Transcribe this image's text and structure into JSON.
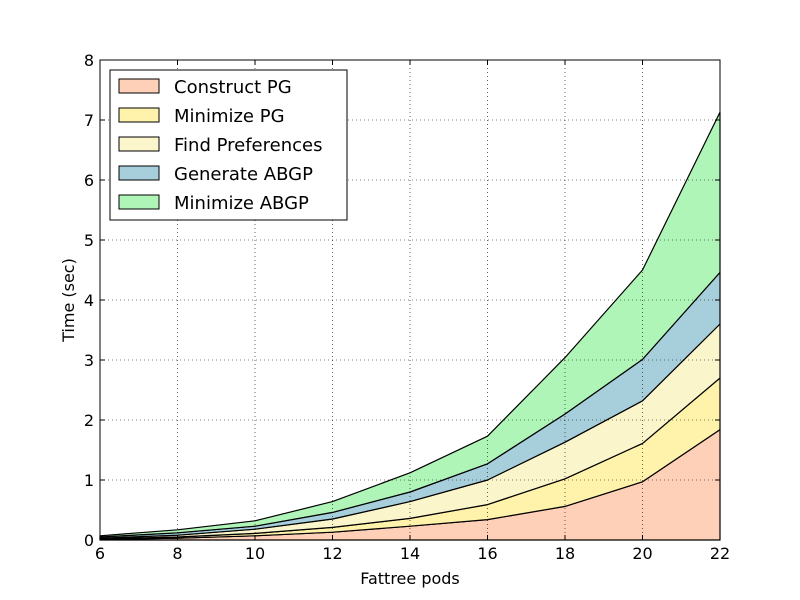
{
  "chart_data": {
    "type": "area",
    "stacked": true,
    "xlabel": "Fattree pods",
    "ylabel": "Time (sec)",
    "xlim": [
      6,
      22
    ],
    "ylim": [
      0,
      8
    ],
    "grid": true,
    "legend_position": "top-left",
    "x": [
      6,
      8,
      10,
      12,
      14,
      16,
      18,
      20,
      22
    ],
    "x_ticks": [
      "6",
      "8",
      "10",
      "12",
      "14",
      "16",
      "18",
      "20",
      "22"
    ],
    "y_ticks": [
      "0",
      "1",
      "2",
      "3",
      "4",
      "5",
      "6",
      "7",
      "8"
    ],
    "series": [
      {
        "name": "Construct PG",
        "color": "#ffd0b8",
        "values": [
          0.01,
          0.03,
          0.07,
          0.13,
          0.23,
          0.34,
          0.56,
          0.97,
          1.84
        ]
      },
      {
        "name": "Minimize PG",
        "color": "#fff2aa",
        "values": [
          0.01,
          0.02,
          0.04,
          0.08,
          0.13,
          0.25,
          0.46,
          0.64,
          0.86
        ]
      },
      {
        "name": "Find Preferences",
        "color": "#fbf5cb",
        "values": [
          0.01,
          0.03,
          0.07,
          0.14,
          0.28,
          0.41,
          0.61,
          0.71,
          0.9
        ]
      },
      {
        "name": "Generate ABGP",
        "color": "#a6cfdb",
        "values": [
          0.02,
          0.04,
          0.05,
          0.11,
          0.16,
          0.27,
          0.47,
          0.69,
          0.86
        ]
      },
      {
        "name": "Minimize ABGP",
        "color": "#b0f5b8",
        "values": [
          0.02,
          0.05,
          0.09,
          0.18,
          0.32,
          0.46,
          0.94,
          1.49,
          2.67
        ]
      }
    ]
  }
}
